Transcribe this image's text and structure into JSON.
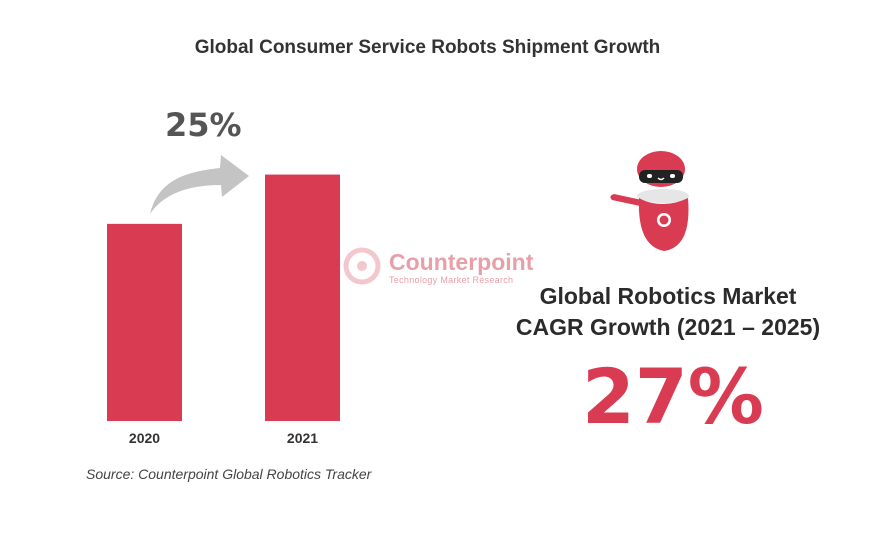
{
  "chart_data": {
    "type": "bar",
    "title": "Global Consumer Service Robots Shipment Growth",
    "categories": [
      "2020",
      "2021"
    ],
    "values": [
      100,
      125
    ],
    "ylim": [
      0,
      140
    ],
    "xlabel": "",
    "ylabel": "",
    "growth_annotation": "25%",
    "grid": false,
    "bar_color": "#d93b52"
  },
  "source": "Source: Counterpoint Global Robotics Tracker",
  "watermark": {
    "name": "Counterpoint",
    "sub": "Technology Market Research"
  },
  "cagr": {
    "title_line1": "Global Robotics Market",
    "title_line2": "CAGR Growth (2021 – 2025)",
    "value": "27%"
  },
  "colors": {
    "accent": "#d93b52",
    "arrow": "#c4c4c4"
  },
  "icons": {
    "robot": "robot-icon",
    "arrow": "curved-arrow-icon"
  }
}
